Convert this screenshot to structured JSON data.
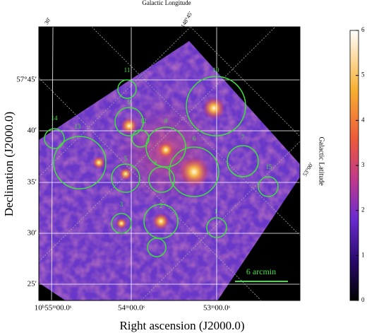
{
  "figure": {
    "top_axis_title": "Galactic Longitude",
    "right_axis_title": "Galactic Latitude",
    "x_axis_title": "Right ascension (J2000.0)",
    "y_axis_title": "Declination (J2000.0)",
    "ra_ticks": [
      "10ʰ55ᵐ00.0ˢ",
      "54ᵐ00.0ˢ",
      "53ᵐ00.0ˢ"
    ],
    "dec_ticks": [
      "57°45′",
      "40′",
      "35′",
      "30′",
      "25′"
    ],
    "galactic_ticks": [
      "30′",
      "148°45′",
      "53°00′"
    ],
    "colorbar_ticks": [
      0,
      1,
      2,
      3,
      4,
      5,
      6
    ],
    "source_labels": [
      "11",
      "10",
      "9",
      "14",
      "13",
      "12",
      "8",
      "7",
      "6",
      "5",
      "4",
      "15",
      "3",
      "2",
      "1"
    ],
    "scale_bar": "6 arcmin"
  }
}
